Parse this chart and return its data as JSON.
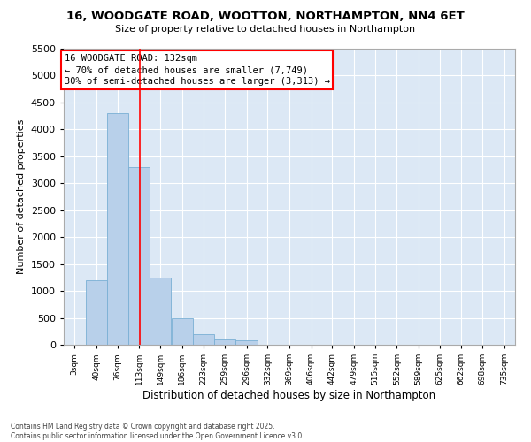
{
  "title_line1": "16, WOODGATE ROAD, WOOTTON, NORTHAMPTON, NN4 6ET",
  "title_line2": "Size of property relative to detached houses in Northampton",
  "xlabel": "Distribution of detached houses by size in Northampton",
  "ylabel": "Number of detached properties",
  "bar_color": "#b8d0ea",
  "bar_edge_color": "#7aafd4",
  "fig_bg_color": "#ffffff",
  "ax_bg_color": "#dce8f5",
  "grid_color": "#ffffff",
  "annotation_text": "16 WOODGATE ROAD: 132sqm\n← 70% of detached houses are smaller (7,749)\n30% of semi-detached houses are larger (3,313) →",
  "property_line_x": 132,
  "categories": [
    "3sqm",
    "40sqm",
    "76sqm",
    "113sqm",
    "149sqm",
    "186sqm",
    "223sqm",
    "259sqm",
    "296sqm",
    "332sqm",
    "369sqm",
    "406sqm",
    "442sqm",
    "479sqm",
    "515sqm",
    "552sqm",
    "589sqm",
    "625sqm",
    "662sqm",
    "698sqm",
    "735sqm"
  ],
  "bin_lefts": [
    3,
    40,
    76,
    113,
    149,
    186,
    223,
    259,
    296,
    332,
    369,
    406,
    442,
    479,
    515,
    552,
    589,
    625,
    662,
    698,
    735
  ],
  "bin_width": 37,
  "bar_heights": [
    0,
    1200,
    4300,
    3300,
    1250,
    500,
    200,
    100,
    75,
    0,
    0,
    0,
    0,
    0,
    0,
    0,
    0,
    0,
    0,
    0,
    0
  ],
  "ylim": [
    0,
    5500
  ],
  "yticks": [
    0,
    500,
    1000,
    1500,
    2000,
    2500,
    3000,
    3500,
    4000,
    4500,
    5000,
    5500
  ],
  "footer_line1": "Contains HM Land Registry data © Crown copyright and database right 2025.",
  "footer_line2": "Contains public sector information licensed under the Open Government Licence v3.0."
}
